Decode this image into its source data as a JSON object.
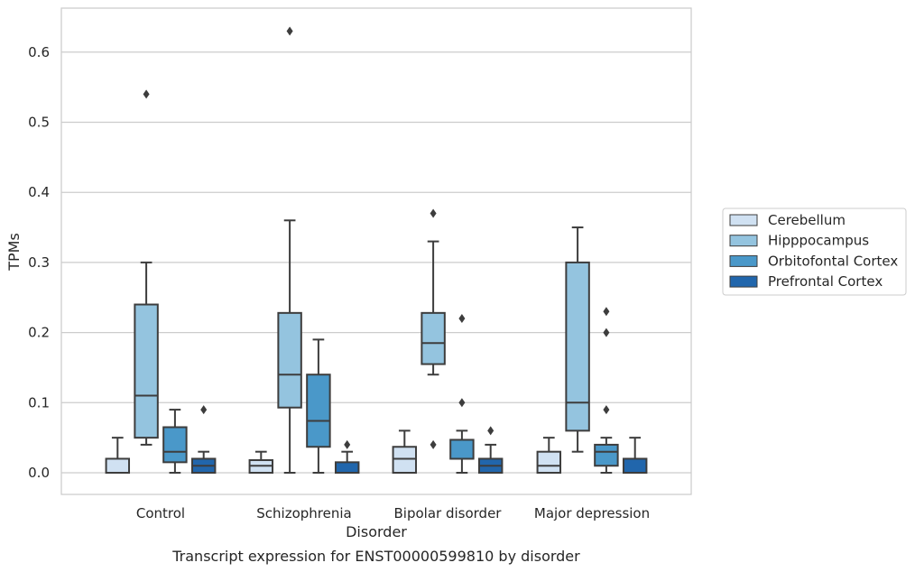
{
  "chart_data": {
    "type": "box",
    "title": "",
    "caption": "Transcript expression for ENST00000599810 by disorder",
    "xlabel": "Disorder",
    "ylabel": "TPMs",
    "ylim": [
      -0.03,
      0.665
    ],
    "yticks": [
      0.0,
      0.1,
      0.2,
      0.3,
      0.4,
      0.5,
      0.6
    ],
    "ytick_labels": [
      "0.0",
      "0.1",
      "0.2",
      "0.3",
      "0.4",
      "0.5",
      "0.6"
    ],
    "grid": "horizontal",
    "legend_position": "right",
    "categories": [
      "Control",
      "Schizophrenia",
      "Bipolar disorder",
      "Major depression"
    ],
    "series": [
      {
        "name": "Cerebellum",
        "color": "#d0e1f2",
        "boxes": [
          {
            "whislo": 0.0,
            "q1": 0.0,
            "med": 0.0,
            "q3": 0.02,
            "whishi": 0.05,
            "fliers": []
          },
          {
            "whislo": 0.0,
            "q1": 0.0,
            "med": 0.01,
            "q3": 0.018,
            "whishi": 0.03,
            "fliers": []
          },
          {
            "whislo": 0.0,
            "q1": 0.0,
            "med": 0.02,
            "q3": 0.037,
            "whishi": 0.06,
            "fliers": []
          },
          {
            "whislo": 0.0,
            "q1": 0.0,
            "med": 0.01,
            "q3": 0.03,
            "whishi": 0.05,
            "fliers": []
          }
        ]
      },
      {
        "name": "Hipppocampus",
        "color": "#94c4df",
        "boxes": [
          {
            "whislo": 0.04,
            "q1": 0.05,
            "med": 0.11,
            "q3": 0.24,
            "whishi": 0.3,
            "fliers": [
              0.54
            ]
          },
          {
            "whislo": 0.0,
            "q1": 0.093,
            "med": 0.14,
            "q3": 0.228,
            "whishi": 0.36,
            "fliers": [
              0.63
            ]
          },
          {
            "whislo": 0.14,
            "q1": 0.155,
            "med": 0.185,
            "q3": 0.228,
            "whishi": 0.33,
            "fliers": [
              0.04,
              0.37
            ]
          },
          {
            "whislo": 0.03,
            "q1": 0.06,
            "med": 0.1,
            "q3": 0.3,
            "whishi": 0.35,
            "fliers": []
          }
        ]
      },
      {
        "name": "Orbitofontal Cortex",
        "color": "#4a98c9",
        "boxes": [
          {
            "whislo": 0.0,
            "q1": 0.015,
            "med": 0.03,
            "q3": 0.065,
            "whishi": 0.09,
            "fliers": []
          },
          {
            "whislo": 0.0,
            "q1": 0.037,
            "med": 0.074,
            "q3": 0.14,
            "whishi": 0.19,
            "fliers": []
          },
          {
            "whislo": 0.0,
            "q1": 0.02,
            "med": 0.02,
            "q3": 0.047,
            "whishi": 0.06,
            "fliers": [
              0.1,
              0.22
            ]
          },
          {
            "whislo": 0.0,
            "q1": 0.01,
            "med": 0.03,
            "q3": 0.04,
            "whishi": 0.05,
            "fliers": [
              0.09,
              0.2,
              0.23
            ]
          }
        ]
      },
      {
        "name": "Prefrontal Cortex",
        "color": "#2166ac",
        "boxes": [
          {
            "whislo": 0.0,
            "q1": 0.0,
            "med": 0.01,
            "q3": 0.02,
            "whishi": 0.03,
            "fliers": [
              0.09
            ]
          },
          {
            "whislo": 0.0,
            "q1": 0.0,
            "med": 0.0,
            "q3": 0.015,
            "whishi": 0.03,
            "fliers": [
              0.04
            ]
          },
          {
            "whislo": 0.0,
            "q1": 0.0,
            "med": 0.01,
            "q3": 0.02,
            "whishi": 0.04,
            "fliers": [
              0.06
            ]
          },
          {
            "whislo": 0.0,
            "q1": 0.0,
            "med": 0.0,
            "q3": 0.02,
            "whishi": 0.05,
            "fliers": []
          }
        ]
      }
    ]
  }
}
